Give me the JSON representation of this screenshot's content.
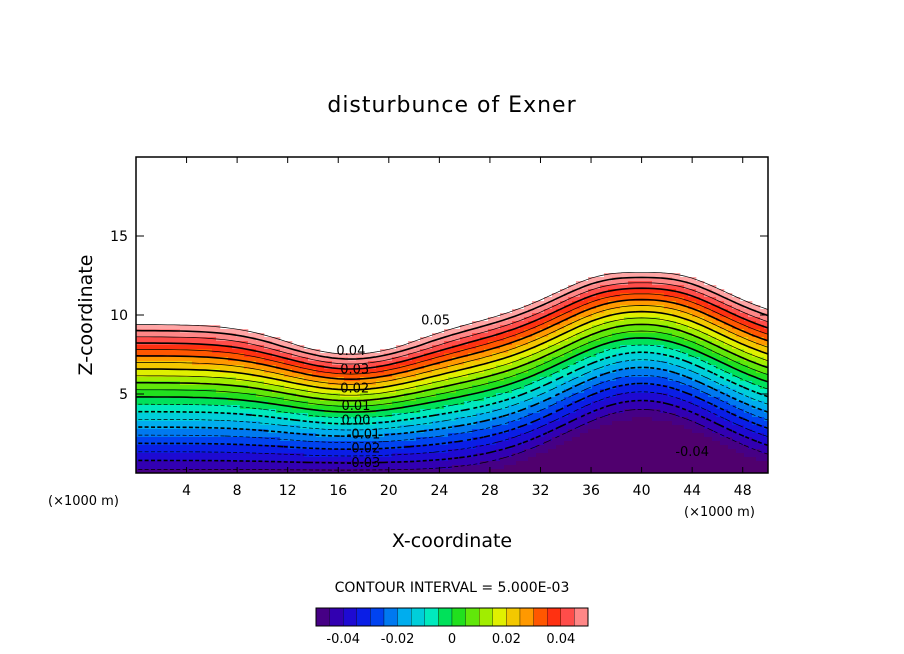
{
  "chart_data": {
    "type": "contour",
    "title": "disturbunce of Exner",
    "xlabel": "X-coordinate",
    "ylabel": "Z-coordinate",
    "x_unit": "(×1000 m)",
    "y_unit": "(×1000 m)",
    "xlim": [
      0,
      50
    ],
    "ylim": [
      0,
      20
    ],
    "x_ticks": [
      4,
      8,
      12,
      16,
      20,
      24,
      28,
      32,
      36,
      40,
      44,
      48
    ],
    "y_ticks": [
      5,
      10,
      15
    ],
    "contour_interval_text": "CONTOUR INTERVAL = 5.000E-03",
    "contour_interval": 0.005,
    "levels": [
      -0.045,
      -0.04,
      -0.035,
      -0.03,
      -0.025,
      -0.02,
      -0.015,
      -0.01,
      -0.005,
      0,
      0.005,
      0.01,
      0.015,
      0.02,
      0.025,
      0.03,
      0.035,
      0.04,
      0.045,
      0.05,
      0.055
    ],
    "contour_labels": [
      {
        "text": "0.05",
        "x": 23.7,
        "y": 9.7
      },
      {
        "text": "0.04",
        "x": 17.0,
        "y": 7.8
      },
      {
        "text": "0.03",
        "x": 17.3,
        "y": 6.6
      },
      {
        "text": "0.02",
        "x": 17.3,
        "y": 5.4
      },
      {
        "text": "0.01",
        "x": 17.4,
        "y": 4.3
      },
      {
        "text": "0.00",
        "x": 17.4,
        "y": 3.4
      },
      {
        "text": "-0.01",
        "x": 18.0,
        "y": 2.5
      },
      {
        "text": "-0.02",
        "x": 18.0,
        "y": 1.6
      },
      {
        "text": "-0.03",
        "x": 18.0,
        "y": 0.7
      },
      {
        "text": "-0.04",
        "x": 44.0,
        "y": 1.4
      }
    ],
    "colorbar": {
      "min": -0.05,
      "max": 0.05,
      "ticks": [
        {
          "label": "-0.04",
          "value": -0.04
        },
        {
          "label": "-0.02",
          "value": -0.02
        },
        {
          "label": "0",
          "value": 0
        },
        {
          "label": "0.02",
          "value": 0.02
        },
        {
          "label": "0.04",
          "value": 0.04
        }
      ]
    },
    "fill_above": 0.055,
    "negative_contours": "dashed",
    "bold_every": 2
  }
}
